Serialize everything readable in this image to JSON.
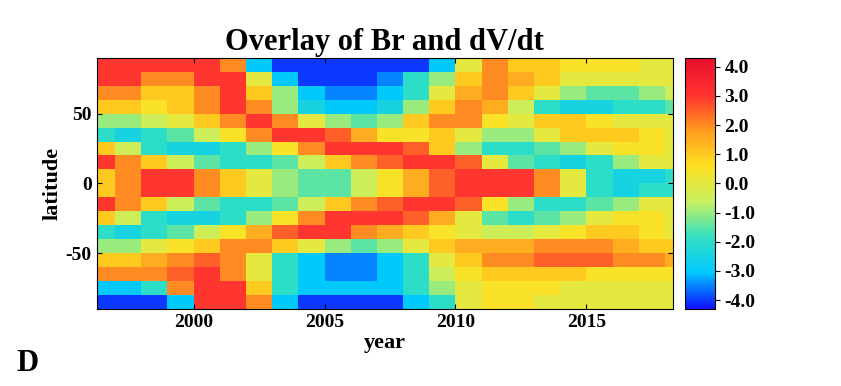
{
  "chart_data": {
    "type": "heatmap",
    "title": "Overlay of Br and dV/dt",
    "panel_label": "D",
    "x_label": "year",
    "y_label": "latitude",
    "x": [
      1996,
      1997,
      1998,
      1999,
      2000,
      2001,
      2002,
      2003,
      2004,
      2005,
      2006,
      2007,
      2008,
      2009,
      2010,
      2011,
      2012,
      2013,
      2014,
      2015,
      2016,
      2017,
      2018,
      2019
    ],
    "y": [
      -90,
      -80,
      -70,
      -60,
      -50,
      -40,
      -30,
      -20,
      -10,
      0,
      10,
      20,
      30,
      40,
      50,
      60,
      70,
      80,
      90
    ],
    "cells": [
      [
        -4,
        -4,
        -4,
        -3,
        3,
        3,
        2,
        -3,
        -4,
        -4,
        -4,
        -4,
        -3,
        -2,
        0,
        0.5,
        0.5,
        0,
        0,
        0,
        0,
        0,
        0
      ],
      [
        -3,
        -3,
        -2,
        2,
        3,
        3,
        1,
        -2,
        -3,
        -3,
        -3,
        -3,
        -2,
        -1,
        0,
        0.5,
        0.5,
        0.5,
        0,
        0,
        0,
        0,
        0
      ],
      [
        2,
        2,
        2,
        2.5,
        3,
        2,
        0,
        -2,
        -3,
        -3.5,
        -3.5,
        -3,
        -2,
        -0.5,
        0.5,
        1,
        1,
        1,
        1,
        0.5,
        0.5,
        0.5,
        0.5
      ],
      [
        1,
        1,
        1.5,
        2,
        2.5,
        2,
        0,
        -2,
        -3,
        -3.5,
        -3.5,
        -3,
        -2,
        0,
        1,
        2,
        2,
        2.5,
        2.5,
        2.5,
        2,
        2,
        1.5
      ],
      [
        -1,
        -1,
        0,
        0.5,
        1,
        2,
        2,
        1,
        0,
        -1,
        -1.5,
        -1,
        0,
        1,
        1.5,
        1.5,
        1.5,
        2,
        2,
        2,
        1.5,
        1,
        1
      ],
      [
        -2,
        -2.5,
        -2,
        -1.5,
        -0.5,
        0.5,
        1.5,
        2.5,
        3,
        3,
        2,
        1.5,
        1,
        0.5,
        0,
        -0.5,
        -0.5,
        0,
        0.5,
        1,
        1,
        0.5,
        0
      ],
      [
        1,
        -0.5,
        -2,
        -2.5,
        -2.5,
        -2,
        -1,
        0.5,
        2,
        3,
        3,
        3,
        2.5,
        1.5,
        0,
        -1.5,
        -2,
        -1.5,
        -1,
        0,
        0.5,
        0.5,
        0
      ],
      [
        3,
        2,
        1,
        -0.5,
        -1.5,
        -2,
        -2,
        -1.5,
        -0.5,
        1,
        2,
        2.5,
        3,
        3,
        2.5,
        0.5,
        -1,
        -2,
        -2,
        -1.5,
        -1,
        0,
        0
      ],
      [
        1,
        2,
        3,
        3,
        2,
        1,
        0,
        -1,
        -1.5,
        -1.5,
        -0.5,
        0.5,
        1.5,
        2.5,
        3,
        3,
        3,
        2,
        0,
        -2,
        -2.5,
        -2,
        -2
      ],
      [
        1,
        2,
        3,
        3,
        2,
        1,
        0,
        -1,
        -1.5,
        -1.5,
        -0.5,
        0.5,
        1.5,
        2.5,
        3,
        3,
        3,
        2,
        0,
        -2,
        -2.5,
        -2.5,
        -2
      ],
      [
        3,
        2,
        1,
        -0.5,
        -1.5,
        -2,
        -2,
        -1.5,
        -0.5,
        1,
        2,
        2.5,
        3,
        3,
        2.5,
        0,
        -1.5,
        -2,
        -2.5,
        -2,
        -1,
        0,
        0
      ],
      [
        1,
        -0.5,
        -2,
        -2.5,
        -2.5,
        -2,
        -1,
        0.5,
        2,
        3,
        3,
        3,
        2.5,
        1,
        -1,
        -2,
        -2,
        -1.5,
        -1,
        0,
        0.5,
        0.5,
        0
      ],
      [
        -2,
        -2.5,
        -2,
        -1.5,
        -0.5,
        0.5,
        2,
        3,
        3,
        2.5,
        1.5,
        0.5,
        0.5,
        1,
        0,
        -1,
        -1,
        0,
        1,
        1,
        1,
        0.5,
        0
      ],
      [
        -1,
        -1,
        -0.5,
        0,
        1,
        2,
        3,
        2,
        0,
        -1,
        -1.5,
        -1,
        1,
        2,
        2,
        0.5,
        0,
        1,
        1,
        0.5,
        0,
        0,
        0
      ],
      [
        1,
        1,
        0.5,
        1,
        2,
        3,
        2,
        -1,
        -2.5,
        -3,
        -3,
        -2.5,
        -1,
        1,
        2,
        1.5,
        -0.5,
        -2,
        -2.5,
        -2.5,
        -2,
        -2,
        -1.5
      ],
      [
        2,
        2,
        1,
        1,
        2,
        3,
        1,
        -1,
        -3,
        -3.5,
        -3.5,
        -3,
        -2,
        0,
        1.5,
        2,
        1,
        0,
        -1,
        -1.5,
        -1.5,
        -1,
        -0.5
      ],
      [
        3,
        3,
        2,
        2,
        3,
        3,
        0,
        -3,
        -4,
        -4,
        -4,
        -3.5,
        -2,
        -1,
        1,
        2,
        1.5,
        1,
        0,
        0,
        0,
        0,
        0
      ],
      [
        3,
        3,
        3,
        3,
        3,
        2,
        -3,
        -4,
        -4,
        -4,
        -4,
        -4,
        -4,
        -3,
        0,
        2,
        1,
        1,
        0.5,
        0.5,
        0.5,
        0,
        0
      ]
    ],
    "xlim": [
      1996.3,
      2018.3
    ],
    "ylim": [
      -90,
      90
    ],
    "xticks": [
      2000,
      2005,
      2010,
      2015
    ],
    "yticks": [
      -50,
      0,
      50
    ],
    "color_range": [
      -4.3,
      4.3
    ],
    "color_ticks": [
      {
        "value": -4,
        "label": "-4.0"
      },
      {
        "value": -3,
        "label": "-3.0"
      },
      {
        "value": -2,
        "label": "-2.0"
      },
      {
        "value": -1,
        "label": "-1.0"
      },
      {
        "value": 0,
        "label": "0.0"
      },
      {
        "value": 1,
        "label": "1.0"
      },
      {
        "value": 2,
        "label": "2.0"
      },
      {
        "value": 3,
        "label": "3.0"
      },
      {
        "value": 4,
        "label": "4.0"
      }
    ]
  }
}
